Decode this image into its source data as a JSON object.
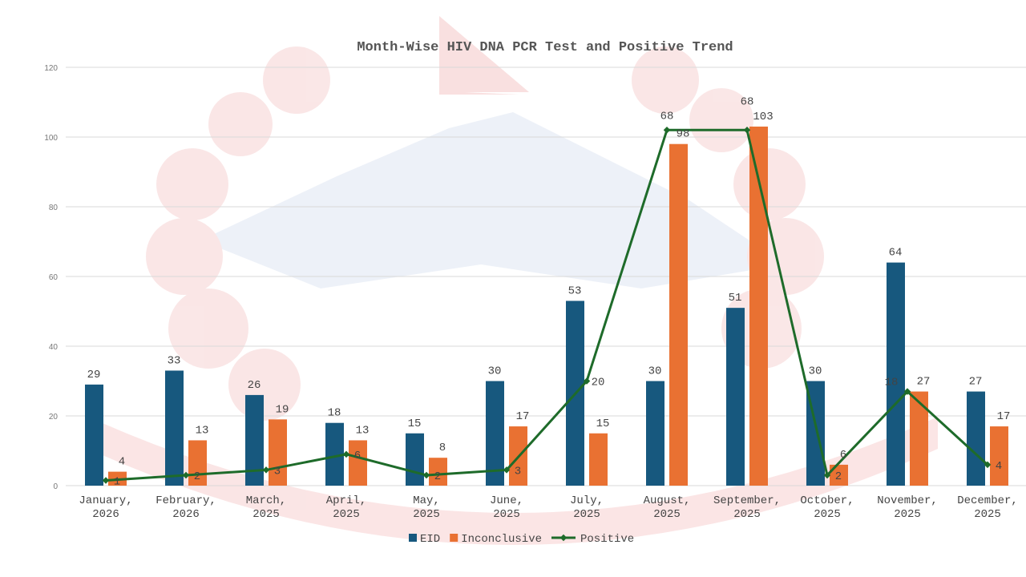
{
  "chart_data": {
    "type": "bar",
    "title": "Month-Wise HIV DNA PCR Test and Positive Trend",
    "categories": [
      "January, 2026",
      "February, 2026",
      "March, 2025",
      "April, 2025",
      "May, 2025",
      "June, 2025",
      "July, 2025",
      "August, 2025",
      "September, 2025",
      "October, 2025",
      "November, 2025",
      "December, 2025"
    ],
    "series": [
      {
        "name": "EID",
        "type": "bar",
        "color": "#17587e",
        "values": [
          29,
          33,
          26,
          18,
          15,
          30,
          53,
          30,
          51,
          30,
          64,
          27
        ]
      },
      {
        "name": "Inconclusive",
        "type": "bar",
        "color": "#e97132",
        "values": [
          4,
          13,
          19,
          13,
          8,
          17,
          15,
          98,
          103,
          6,
          27,
          17
        ]
      },
      {
        "name": "Positive",
        "type": "line",
        "axis": "secondary",
        "color": "#1e6b2a",
        "values": [
          1,
          2,
          3,
          6,
          2,
          3,
          20,
          68,
          68,
          2,
          18,
          4
        ]
      }
    ],
    "ylim": [
      0,
      120
    ],
    "y2lim": [
      0,
      80
    ],
    "yticks": [
      0,
      20,
      40,
      60,
      80,
      100,
      120
    ],
    "xlabel": "",
    "ylabel": "",
    "grid": true,
    "legend": "bottom"
  }
}
